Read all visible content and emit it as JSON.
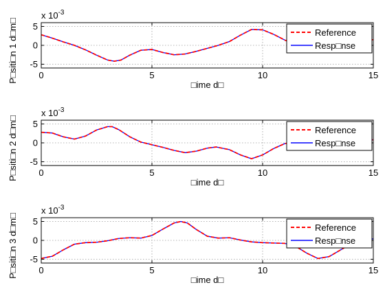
{
  "chart_data": [
    {
      "type": "line",
      "xlabel": "□ime d□",
      "ylabel": "P□siti□n 1 d□m□",
      "exponent_base": "x 10",
      "exponent_power": "-3",
      "xlim": [
        0,
        15
      ],
      "ylim": [
        -6,
        6
      ],
      "xticks": [
        0,
        5,
        10,
        15
      ],
      "yticks": [
        5,
        0,
        -5
      ],
      "grid": true,
      "legend": "top-right",
      "x": [
        0,
        0.5,
        1,
        1.5,
        2,
        2.5,
        3,
        3.3,
        3.6,
        4,
        4.5,
        5,
        5.5,
        6,
        6.5,
        7,
        7.5,
        8,
        8.5,
        9,
        9.5,
        10,
        10.5,
        11,
        11.5,
        12,
        12.5,
        13,
        13.5,
        14,
        14.5,
        15
      ],
      "series": [
        {
          "name": "Reference",
          "color": "#ff0000",
          "dash": true,
          "values": [
            2.8,
            1.9,
            0.9,
            0.0,
            -1.2,
            -2.6,
            -3.9,
            -4.2,
            -3.9,
            -2.6,
            -1.3,
            -1.1,
            -1.9,
            -2.5,
            -2.3,
            -1.6,
            -0.8,
            0.0,
            1.0,
            2.7,
            4.2,
            4.1,
            2.9,
            1.4,
            0.1,
            -0.8,
            -1.2,
            -0.9,
            -0.2,
            0.6,
            1.2,
            1.5
          ]
        },
        {
          "name": "Resp□nse",
          "color": "#0000ff",
          "dash": false,
          "values": [
            2.8,
            1.9,
            0.9,
            0.0,
            -1.2,
            -2.6,
            -3.9,
            -4.2,
            -3.9,
            -2.6,
            -1.3,
            -1.1,
            -1.9,
            -2.5,
            -2.3,
            -1.6,
            -0.8,
            0.0,
            1.0,
            2.7,
            4.2,
            4.1,
            2.9,
            1.4,
            0.1,
            -0.8,
            -1.2,
            -0.9,
            -0.2,
            0.6,
            1.2,
            1.5
          ]
        }
      ]
    },
    {
      "type": "line",
      "xlabel": "□ime d□",
      "ylabel": "P□siti□n 2 d□m□",
      "exponent_base": "x 10",
      "exponent_power": "-3",
      "xlim": [
        0,
        15
      ],
      "ylim": [
        -6,
        6
      ],
      "xticks": [
        0,
        5,
        10,
        15
      ],
      "yticks": [
        5,
        0,
        -5
      ],
      "grid": true,
      "legend": "top-right",
      "x": [
        0,
        0.5,
        1,
        1.5,
        2,
        2.5,
        3,
        3.2,
        3.5,
        4,
        4.5,
        5,
        5.5,
        6,
        6.5,
        7,
        7.5,
        7.9,
        8.5,
        9,
        9.5,
        10,
        10.5,
        11,
        11.5,
        12,
        12.5,
        13,
        13.5,
        14,
        14.5,
        15
      ],
      "series": [
        {
          "name": "Reference",
          "color": "#ff0000",
          "dash": true,
          "values": [
            2.8,
            2.6,
            1.6,
            1.0,
            1.8,
            3.4,
            4.3,
            4.3,
            3.5,
            1.6,
            0.2,
            -0.5,
            -1.2,
            -2.0,
            -2.6,
            -2.2,
            -1.4,
            -1.1,
            -1.8,
            -3.2,
            -4.2,
            -3.2,
            -1.5,
            -0.2,
            0.3,
            0.1,
            -0.3,
            -0.1,
            0.4,
            0.8,
            0.9,
            0.8
          ]
        },
        {
          "name": "Resp□nse",
          "color": "#0000ff",
          "dash": false,
          "values": [
            2.8,
            2.6,
            1.6,
            1.0,
            1.8,
            3.4,
            4.3,
            4.3,
            3.5,
            1.6,
            0.2,
            -0.5,
            -1.2,
            -2.0,
            -2.6,
            -2.2,
            -1.4,
            -1.1,
            -1.8,
            -3.2,
            -4.2,
            -3.2,
            -1.5,
            -0.2,
            0.3,
            0.1,
            -0.3,
            -0.1,
            0.4,
            0.8,
            0.9,
            0.8
          ]
        }
      ]
    },
    {
      "type": "line",
      "xlabel": "□ime d□",
      "ylabel": "P□siti□n 3 d□m□",
      "exponent_base": "x 10",
      "exponent_power": "-3",
      "xlim": [
        0,
        15
      ],
      "ylim": [
        -6,
        6
      ],
      "xticks": [
        0,
        5,
        10,
        15
      ],
      "yticks": [
        5,
        0,
        -5
      ],
      "grid": true,
      "legend": "top-right",
      "x": [
        0,
        0.5,
        1,
        1.5,
        2,
        2.5,
        3,
        3.5,
        4,
        4.5,
        5,
        5.5,
        6,
        6.3,
        6.6,
        7,
        7.5,
        8,
        8.5,
        9,
        9.5,
        10,
        10.5,
        11,
        11.5,
        12,
        12.5,
        13,
        13.5,
        14,
        14.5,
        15
      ],
      "series": [
        {
          "name": "Reference",
          "color": "#ff0000",
          "dash": true,
          "values": [
            -4.8,
            -4.2,
            -2.5,
            -1.0,
            -0.6,
            -0.5,
            -0.1,
            0.5,
            0.7,
            0.6,
            1.3,
            3.0,
            4.6,
            5.0,
            4.6,
            2.9,
            1.1,
            0.6,
            0.7,
            0.1,
            -0.4,
            -0.6,
            -0.7,
            -0.8,
            -1.6,
            -3.4,
            -4.8,
            -4.3,
            -2.6,
            -0.9,
            0.2,
            0.4
          ]
        },
        {
          "name": "Resp□nse",
          "color": "#0000ff",
          "dash": false,
          "values": [
            -4.8,
            -4.2,
            -2.5,
            -1.0,
            -0.6,
            -0.5,
            -0.1,
            0.5,
            0.7,
            0.6,
            1.3,
            3.0,
            4.6,
            5.0,
            4.6,
            2.9,
            1.1,
            0.6,
            0.7,
            0.1,
            -0.4,
            -0.6,
            -0.7,
            -0.8,
            -1.6,
            -3.4,
            -4.8,
            -4.3,
            -2.6,
            -0.9,
            0.2,
            0.4
          ]
        }
      ]
    }
  ]
}
